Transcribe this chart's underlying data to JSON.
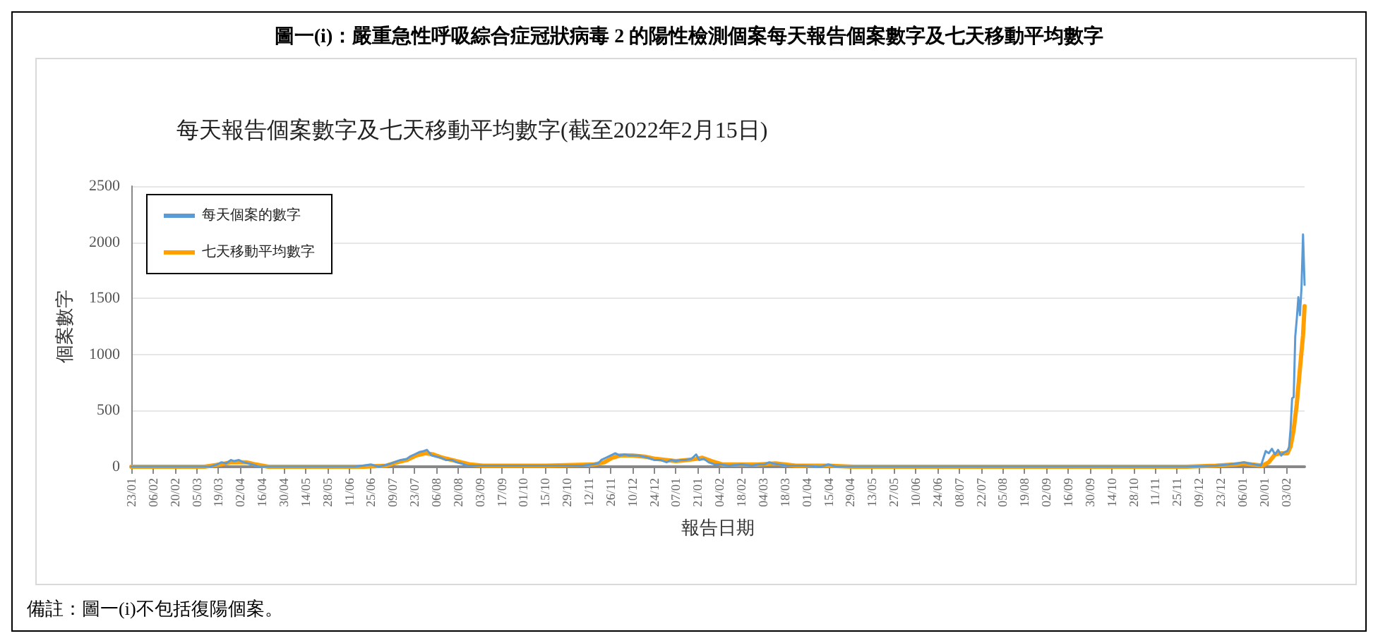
{
  "chart_data": {
    "type": "line",
    "title": "圖一(i)：嚴重急性呼吸綜合症冠狀病毒 2 的陽性檢測個案每天報告個案數字及七天移動平均數字",
    "subtitle": "每天報告個案數字及七天移動平均數字(截至2022年2月15日)",
    "xlabel": "報告日期",
    "ylabel": "個案數字",
    "annotations": [
      "備註：圖一(i)不包括復陽個案。"
    ],
    "xlim": [
      "2020-01-23",
      "2022-02-15"
    ],
    "xticks": [
      {
        "value": "2020-01-23",
        "label": "23/01"
      },
      {
        "value": "2020-02-06",
        "label": "06/02"
      },
      {
        "value": "2020-02-20",
        "label": "20/02"
      },
      {
        "value": "2020-03-05",
        "label": "05/03"
      },
      {
        "value": "2020-03-19",
        "label": "19/03"
      },
      {
        "value": "2020-04-02",
        "label": "02/04"
      },
      {
        "value": "2020-04-16",
        "label": "16/04"
      },
      {
        "value": "2020-04-30",
        "label": "30/04"
      },
      {
        "value": "2020-05-14",
        "label": "14/05"
      },
      {
        "value": "2020-05-28",
        "label": "28/05"
      },
      {
        "value": "2020-06-11",
        "label": "11/06"
      },
      {
        "value": "2020-06-25",
        "label": "25/06"
      },
      {
        "value": "2020-07-09",
        "label": "09/07"
      },
      {
        "value": "2020-07-23",
        "label": "23/07"
      },
      {
        "value": "2020-08-06",
        "label": "06/08"
      },
      {
        "value": "2020-08-20",
        "label": "20/08"
      },
      {
        "value": "2020-09-03",
        "label": "03/09"
      },
      {
        "value": "2020-09-17",
        "label": "17/09"
      },
      {
        "value": "2020-10-01",
        "label": "01/10"
      },
      {
        "value": "2020-10-15",
        "label": "15/10"
      },
      {
        "value": "2020-10-29",
        "label": "29/10"
      },
      {
        "value": "2020-11-12",
        "label": "12/11"
      },
      {
        "value": "2020-11-26",
        "label": "26/11"
      },
      {
        "value": "2020-12-10",
        "label": "10/12"
      },
      {
        "value": "2020-12-24",
        "label": "24/12"
      },
      {
        "value": "2021-01-07",
        "label": "07/01"
      },
      {
        "value": "2021-01-21",
        "label": "21/01"
      },
      {
        "value": "2021-02-04",
        "label": "04/02"
      },
      {
        "value": "2021-02-18",
        "label": "18/02"
      },
      {
        "value": "2021-03-04",
        "label": "04/03"
      },
      {
        "value": "2021-03-18",
        "label": "18/03"
      },
      {
        "value": "2021-04-01",
        "label": "01/04"
      },
      {
        "value": "2021-04-15",
        "label": "15/04"
      },
      {
        "value": "2021-04-29",
        "label": "29/04"
      },
      {
        "value": "2021-05-13",
        "label": "13/05"
      },
      {
        "value": "2021-05-27",
        "label": "27/05"
      },
      {
        "value": "2021-06-10",
        "label": "10/06"
      },
      {
        "value": "2021-06-24",
        "label": "24/06"
      },
      {
        "value": "2021-07-08",
        "label": "08/07"
      },
      {
        "value": "2021-07-22",
        "label": "22/07"
      },
      {
        "value": "2021-08-05",
        "label": "05/08"
      },
      {
        "value": "2021-08-19",
        "label": "19/08"
      },
      {
        "value": "2021-09-02",
        "label": "02/09"
      },
      {
        "value": "2021-09-16",
        "label": "16/09"
      },
      {
        "value": "2021-09-30",
        "label": "30/09"
      },
      {
        "value": "2021-10-14",
        "label": "14/10"
      },
      {
        "value": "2021-10-28",
        "label": "28/10"
      },
      {
        "value": "2021-11-11",
        "label": "11/11"
      },
      {
        "value": "2021-11-25",
        "label": "25/11"
      },
      {
        "value": "2021-12-09",
        "label": "09/12"
      },
      {
        "value": "2021-12-23",
        "label": "23/12"
      },
      {
        "value": "2022-01-06",
        "label": "06/01"
      },
      {
        "value": "2022-01-20",
        "label": "20/01"
      },
      {
        "value": "2022-02-03",
        "label": "03/02"
      }
    ],
    "ylim": [
      0,
      2500
    ],
    "yticks": [
      0,
      500,
      1000,
      1500,
      2000,
      2500
    ],
    "grid": "y",
    "legend": "top left",
    "marker": "none",
    "line_style": "solid",
    "series": [
      {
        "name": "每天個案的數字",
        "color": "#5b9bd5",
        "x": [
          "2020-01-23",
          "2020-02-06",
          "2020-02-20",
          "2020-03-05",
          "2020-03-14",
          "2020-03-18",
          "2020-03-21",
          "2020-03-24",
          "2020-03-27",
          "2020-03-29",
          "2020-04-01",
          "2020-04-04",
          "2020-04-07",
          "2020-04-10",
          "2020-04-14",
          "2020-04-20",
          "2020-05-01",
          "2020-05-15",
          "2020-06-01",
          "2020-06-15",
          "2020-06-25",
          "2020-06-30",
          "2020-07-06",
          "2020-07-10",
          "2020-07-14",
          "2020-07-18",
          "2020-07-20",
          "2020-07-23",
          "2020-07-26",
          "2020-07-29",
          "2020-07-31",
          "2020-08-03",
          "2020-08-06",
          "2020-08-09",
          "2020-08-12",
          "2020-08-16",
          "2020-08-19",
          "2020-08-22",
          "2020-08-26",
          "2020-09-01",
          "2020-09-07",
          "2020-09-15",
          "2020-09-25",
          "2020-10-05",
          "2020-10-15",
          "2020-10-29",
          "2020-11-08",
          "2020-11-14",
          "2020-11-18",
          "2020-11-20",
          "2020-11-23",
          "2020-11-26",
          "2020-11-29",
          "2020-12-02",
          "2020-12-05",
          "2020-12-08",
          "2020-12-11",
          "2020-12-14",
          "2020-12-17",
          "2020-12-20",
          "2020-12-24",
          "2020-12-28",
          "2021-01-01",
          "2021-01-04",
          "2021-01-07",
          "2021-01-10",
          "2021-01-13",
          "2021-01-17",
          "2021-01-20",
          "2021-01-22",
          "2021-01-25",
          "2021-01-28",
          "2021-02-01",
          "2021-02-05",
          "2021-02-10",
          "2021-02-18",
          "2021-02-25",
          "2021-03-01",
          "2021-03-05",
          "2021-03-08",
          "2021-03-10",
          "2021-03-14",
          "2021-03-20",
          "2021-03-30",
          "2021-04-10",
          "2021-04-15",
          "2021-04-20",
          "2021-05-01",
          "2021-05-15",
          "2021-06-01",
          "2021-06-15",
          "2021-07-01",
          "2021-07-20",
          "2021-08-10",
          "2021-09-01",
          "2021-09-15",
          "2021-10-01",
          "2021-10-20",
          "2021-11-10",
          "2021-12-01",
          "2021-12-20",
          "2021-12-28",
          "2022-01-03",
          "2022-01-07",
          "2022-01-10",
          "2022-01-14",
          "2022-01-18",
          "2022-01-21",
          "2022-01-23",
          "2022-01-25",
          "2022-01-27",
          "2022-01-29",
          "2022-01-31",
          "2022-02-02",
          "2022-02-04",
          "2022-02-05",
          "2022-02-06",
          "2022-02-07",
          "2022-02-08",
          "2022-02-09",
          "2022-02-10",
          "2022-02-11",
          "2022-02-12",
          "2022-02-13",
          "2022-02-14",
          "2022-02-15"
        ],
        "values": [
          0,
          0,
          0,
          0,
          0,
          20,
          40,
          30,
          60,
          50,
          60,
          40,
          30,
          20,
          0,
          0,
          0,
          0,
          0,
          0,
          20,
          0,
          20,
          40,
          60,
          70,
          90,
          110,
          130,
          140,
          150,
          100,
          90,
          80,
          60,
          60,
          40,
          30,
          10,
          10,
          10,
          10,
          10,
          10,
          10,
          10,
          10,
          20,
          30,
          60,
          80,
          100,
          120,
          100,
          110,
          100,
          100,
          100,
          90,
          80,
          60,
          60,
          40,
          60,
          50,
          60,
          60,
          70,
          110,
          60,
          70,
          40,
          20,
          20,
          10,
          20,
          10,
          20,
          20,
          40,
          30,
          20,
          10,
          10,
          0,
          20,
          0,
          0,
          0,
          0,
          0,
          0,
          0,
          0,
          0,
          0,
          0,
          0,
          0,
          0,
          10,
          20,
          30,
          40,
          30,
          20,
          10,
          140,
          120,
          160,
          110,
          150,
          100,
          130,
          140,
          170,
          340,
          610,
          620,
          1160,
          1320,
          1510,
          1350,
          1590,
          2070,
          1620
        ]
      },
      {
        "name": "七天移動平均數字",
        "color": "#ffa000",
        "x": [
          "2020-01-23",
          "2020-03-10",
          "2020-03-20",
          "2020-03-27",
          "2020-04-01",
          "2020-04-06",
          "2020-04-12",
          "2020-04-20",
          "2020-05-01",
          "2020-06-20",
          "2020-07-05",
          "2020-07-12",
          "2020-07-18",
          "2020-07-24",
          "2020-07-30",
          "2020-08-04",
          "2020-08-10",
          "2020-08-16",
          "2020-08-22",
          "2020-08-28",
          "2020-09-05",
          "2020-10-15",
          "2020-11-15",
          "2020-11-22",
          "2020-11-27",
          "2020-12-02",
          "2020-12-10",
          "2020-12-18",
          "2020-12-25",
          "2021-01-01",
          "2021-01-07",
          "2021-01-14",
          "2021-01-20",
          "2021-01-24",
          "2021-01-30",
          "2021-02-06",
          "2021-02-15",
          "2021-03-01",
          "2021-03-12",
          "2021-03-18",
          "2021-03-25",
          "2021-04-15",
          "2021-05-01",
          "2021-12-01",
          "2021-12-20",
          "2022-01-01",
          "2022-01-07",
          "2022-01-12",
          "2022-01-19",
          "2022-01-23",
          "2022-01-27",
          "2022-01-31",
          "2022-02-04",
          "2022-02-06",
          "2022-02-08",
          "2022-02-10",
          "2022-02-12",
          "2022-02-14",
          "2022-02-15"
        ],
        "values": [
          0,
          0,
          20,
          40,
          40,
          40,
          20,
          0,
          0,
          0,
          10,
          40,
          60,
          100,
          120,
          110,
          80,
          60,
          40,
          20,
          10,
          10,
          20,
          40,
          80,
          100,
          100,
          90,
          70,
          60,
          50,
          60,
          70,
          80,
          50,
          20,
          20,
          20,
          30,
          20,
          10,
          10,
          0,
          0,
          10,
          20,
          30,
          20,
          10,
          40,
          110,
          120,
          120,
          180,
          330,
          560,
          870,
          1170,
          1430
        ]
      }
    ]
  }
}
